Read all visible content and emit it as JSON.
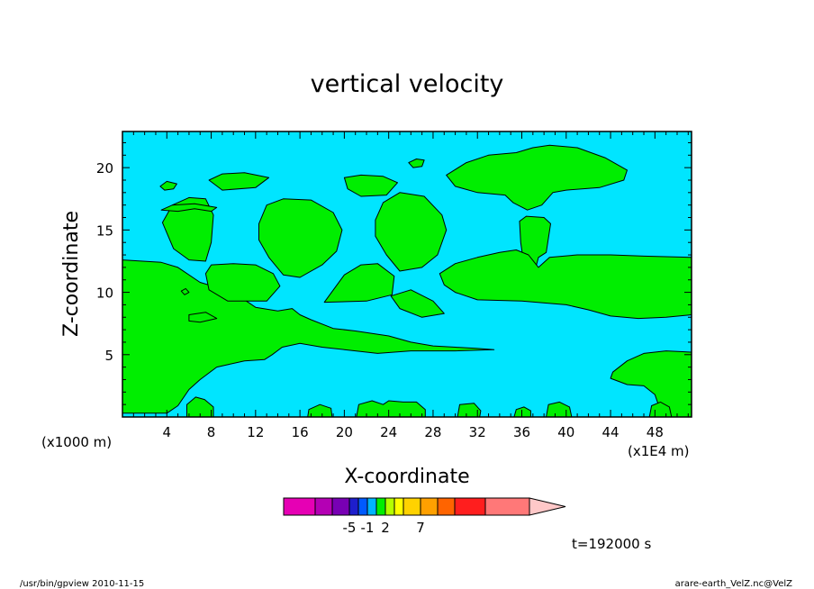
{
  "chart_data": {
    "type": "heatmap",
    "title": "vertical velocity",
    "xlabel": "X-coordinate",
    "ylabel": "Z-coordinate",
    "x_unit": "(x1000 m)",
    "x_unit_right": "(x1E4 m)",
    "x_ticks": [
      4,
      8,
      12,
      16,
      20,
      24,
      28,
      32,
      36,
      40,
      44,
      48
    ],
    "y_ticks": [
      5,
      10,
      15,
      20
    ],
    "xlim": [
      0,
      51.3
    ],
    "ylim": [
      0,
      22.9
    ],
    "fields": {
      "background_color": "#00e5ff",
      "region_color": "#00ee00",
      "regions": [
        {
          "name": "left-lower-mass",
          "points": [
            [
              0,
              12.6
            ],
            [
              3.5,
              12.4
            ],
            [
              5,
              12
            ],
            [
              7,
              10.8
            ],
            [
              10,
              10
            ],
            [
              12,
              8.8
            ],
            [
              14,
              8.5
            ],
            [
              15.3,
              8.7
            ],
            [
              16,
              8.2
            ],
            [
              17,
              7.8
            ],
            [
              19,
              7.1
            ],
            [
              21,
              6.9
            ],
            [
              24,
              6.5
            ],
            [
              26,
              6.0
            ],
            [
              28,
              5.7
            ],
            [
              30,
              5.6
            ],
            [
              32,
              5.5
            ],
            [
              33.5,
              5.4
            ],
            [
              30,
              5.3
            ],
            [
              26,
              5.3
            ],
            [
              23,
              5.1
            ],
            [
              20,
              5.4
            ],
            [
              18,
              5.6
            ],
            [
              16,
              5.9
            ],
            [
              14.4,
              5.6
            ],
            [
              13.5,
              5.0
            ],
            [
              12.8,
              4.6
            ],
            [
              11,
              4.5
            ],
            [
              9.5,
              4.2
            ],
            [
              8.5,
              4.0
            ],
            [
              7,
              3.0
            ],
            [
              6,
              2.2
            ],
            [
              5,
              0.9
            ],
            [
              4,
              0.3
            ],
            [
              0,
              0.3
            ]
          ]
        },
        {
          "name": "upper-left-blob",
          "points": [
            [
              3.6,
              15.6
            ],
            [
              4.5,
              17
            ],
            [
              6,
              17.6
            ],
            [
              7.5,
              17.5
            ],
            [
              8.2,
              16.2
            ],
            [
              8,
              14
            ],
            [
              7.5,
              12.5
            ],
            [
              6,
              12.6
            ],
            [
              4.6,
              13.5
            ]
          ]
        },
        {
          "name": "upper-left-strip",
          "points": [
            [
              3.5,
              16.6
            ],
            [
              5,
              16.5
            ],
            [
              6.5,
              16.7
            ],
            [
              8,
              16.5
            ],
            [
              8.5,
              16.8
            ],
            [
              6.5,
              17.1
            ],
            [
              4.5,
              17.0
            ]
          ]
        },
        {
          "name": "mid-left-box",
          "points": [
            [
              7.5,
              11.5
            ],
            [
              8,
              12.2
            ],
            [
              10,
              12.3
            ],
            [
              12,
              12.2
            ],
            [
              13.6,
              11.5
            ],
            [
              14.2,
              10.5
            ],
            [
              13,
              9.3
            ],
            [
              9.5,
              9.3
            ],
            [
              7.8,
              10.2
            ]
          ]
        },
        {
          "name": "left-small-blob",
          "points": [
            [
              6,
              8.2
            ],
            [
              7.5,
              8.4
            ],
            [
              8.5,
              7.9
            ],
            [
              7,
              7.6
            ],
            [
              6,
              7.7
            ]
          ]
        },
        {
          "name": "center-left-tall-blob",
          "points": [
            [
              12.3,
              15.5
            ],
            [
              13,
              17
            ],
            [
              14.5,
              17.5
            ],
            [
              17,
              17.4
            ],
            [
              19,
              16.4
            ],
            [
              19.8,
              15
            ],
            [
              19.3,
              13.3
            ],
            [
              18,
              12.2
            ],
            [
              16,
              11.2
            ],
            [
              14.5,
              11.4
            ],
            [
              13.2,
              12.8
            ],
            [
              12.3,
              14.2
            ]
          ]
        },
        {
          "name": "top-strip-left",
          "points": [
            [
              7.8,
              19
            ],
            [
              9,
              19.5
            ],
            [
              11,
              19.6
            ],
            [
              13.2,
              19.2
            ],
            [
              12,
              18.4
            ],
            [
              9,
              18.2
            ]
          ]
        },
        {
          "name": "top-strip-center",
          "points": [
            [
              20,
              19.2
            ],
            [
              21.5,
              19.4
            ],
            [
              23.5,
              19.3
            ],
            [
              24.8,
              18.8
            ],
            [
              23.8,
              17.8
            ],
            [
              21.5,
              17.7
            ],
            [
              20.3,
              18.3
            ]
          ]
        },
        {
          "name": "center-right-blob",
          "points": [
            [
              22.8,
              15.8
            ],
            [
              23.5,
              17.2
            ],
            [
              25,
              18
            ],
            [
              27.2,
              17.7
            ],
            [
              28.8,
              16.2
            ],
            [
              29.2,
              15
            ],
            [
              28.4,
              13
            ],
            [
              27,
              12
            ],
            [
              25,
              11.7
            ],
            [
              23.8,
              13
            ],
            [
              22.8,
              14.5
            ]
          ]
        },
        {
          "name": "center-triangle",
          "points": [
            [
              18.2,
              9.2
            ],
            [
              20,
              11.4
            ],
            [
              21.5,
              12.2
            ],
            [
              23,
              12.3
            ],
            [
              24.5,
              11.3
            ],
            [
              24.3,
              9.8
            ],
            [
              22,
              9.3
            ]
          ]
        },
        {
          "name": "center-right-lump",
          "points": [
            [
              24.2,
              9.7
            ],
            [
              26,
              10.2
            ],
            [
              28,
              9.3
            ],
            [
              29,
              8.3
            ],
            [
              27,
              8.0
            ],
            [
              25,
              8.7
            ]
          ]
        },
        {
          "name": "top-right-cloud",
          "points": [
            [
              29.2,
              19.4
            ],
            [
              31,
              20.4
            ],
            [
              33,
              21
            ],
            [
              35.5,
              21.2
            ],
            [
              37,
              21.6
            ],
            [
              38.5,
              21.8
            ],
            [
              41,
              21.6
            ],
            [
              43.5,
              20.8
            ],
            [
              45.5,
              19.8
            ],
            [
              45.2,
              19.0
            ],
            [
              43,
              18.4
            ],
            [
              40,
              18.2
            ],
            [
              38.8,
              18
            ],
            [
              37.8,
              17
            ],
            [
              36.5,
              16.6
            ],
            [
              35.2,
              17.2
            ],
            [
              34.5,
              17.8
            ],
            [
              32,
              18
            ],
            [
              30,
              18.5
            ]
          ]
        },
        {
          "name": "right-tall-lobe",
          "points": [
            [
              35.8,
              15.7
            ],
            [
              36.4,
              16.1
            ],
            [
              38,
              16
            ],
            [
              38.6,
              15.5
            ],
            [
              38.2,
              13.2
            ],
            [
              37.5,
              12.8
            ],
            [
              37.2,
              11.8
            ],
            [
              37.4,
              11.0
            ],
            [
              36.7,
              11.5
            ],
            [
              36.1,
              12.8
            ],
            [
              35.9,
              14
            ]
          ]
        },
        {
          "name": "right-large-mass",
          "points": [
            [
              28.6,
              11.5
            ],
            [
              30,
              12.3
            ],
            [
              32,
              12.8
            ],
            [
              34,
              13.2
            ],
            [
              35.5,
              13.4
            ],
            [
              36.6,
              13
            ],
            [
              37.5,
              12
            ],
            [
              38.5,
              12.8
            ],
            [
              41,
              13
            ],
            [
              44,
              13
            ],
            [
              47,
              12.9
            ],
            [
              51.3,
              12.8
            ],
            [
              51.3,
              8.2
            ],
            [
              49,
              8.0
            ],
            [
              46.5,
              7.9
            ],
            [
              44,
              8.1
            ],
            [
              42,
              8.6
            ],
            [
              40,
              9.0
            ],
            [
              36,
              9.3
            ],
            [
              32,
              9.4
            ],
            [
              30,
              10.0
            ],
            [
              29,
              10.6
            ]
          ]
        },
        {
          "name": "right-lower-mass",
          "points": [
            [
              51.3,
              5.2
            ],
            [
              49,
              5.3
            ],
            [
              47,
              5.1
            ],
            [
              45.5,
              4.5
            ],
            [
              44.2,
              3.6
            ],
            [
              44,
              3.1
            ],
            [
              45.5,
              2.6
            ],
            [
              47,
              2.5
            ],
            [
              48,
              1.8
            ],
            [
              48.5,
              0.5
            ],
            [
              48.5,
              0
            ],
            [
              51.3,
              0
            ]
          ]
        },
        {
          "name": "small-blob-top",
          "points": [
            [
              25.8,
              20.4
            ],
            [
              26.5,
              20.7
            ],
            [
              27.2,
              20.6
            ],
            [
              27,
              20.1
            ],
            [
              26.2,
              20
            ]
          ]
        },
        {
          "name": "small-blob-topleft",
          "points": [
            [
              3.4,
              18.5
            ],
            [
              4,
              18.9
            ],
            [
              4.9,
              18.7
            ],
            [
              4.6,
              18.3
            ],
            [
              3.8,
              18.2
            ]
          ]
        },
        {
          "name": "small-left-dot",
          "points": [
            [
              5.3,
              10.1
            ],
            [
              5.7,
              10.3
            ],
            [
              6,
              10.0
            ],
            [
              5.6,
              9.8
            ]
          ]
        },
        {
          "name": "bottom-blob-1",
          "points": [
            [
              5.8,
              0
            ],
            [
              5.8,
              1.0
            ],
            [
              6.6,
              1.6
            ],
            [
              7.4,
              1.4
            ],
            [
              8.2,
              0.8
            ],
            [
              8.2,
              0
            ]
          ]
        },
        {
          "name": "bottom-blob-2",
          "points": [
            [
              16.7,
              0
            ],
            [
              16.8,
              0.6
            ],
            [
              17.8,
              1.0
            ],
            [
              18.8,
              0.7
            ],
            [
              18.9,
              0
            ]
          ]
        },
        {
          "name": "bottom-blob-3",
          "points": [
            [
              21.1,
              0
            ],
            [
              21.3,
              1.0
            ],
            [
              22.5,
              1.3
            ],
            [
              23.5,
              1.0
            ],
            [
              24,
              1.3
            ],
            [
              25.3,
              1.2
            ],
            [
              26.5,
              1.2
            ],
            [
              27.3,
              0.6
            ],
            [
              27.3,
              0
            ]
          ]
        },
        {
          "name": "bottom-blob-4",
          "points": [
            [
              30.2,
              0
            ],
            [
              30.4,
              1.0
            ],
            [
              31.7,
              1.1
            ],
            [
              32.3,
              0.5
            ],
            [
              32.2,
              0
            ]
          ]
        },
        {
          "name": "bottom-blob-5",
          "points": [
            [
              35.3,
              0
            ],
            [
              35.5,
              0.6
            ],
            [
              36.2,
              0.8
            ],
            [
              36.8,
              0.5
            ],
            [
              36.8,
              0
            ]
          ]
        },
        {
          "name": "bottom-blob-6",
          "points": [
            [
              38.2,
              0
            ],
            [
              38.4,
              1.0
            ],
            [
              39.4,
              1.2
            ],
            [
              40.3,
              0.8
            ],
            [
              40.5,
              0
            ]
          ]
        },
        {
          "name": "bottom-blob-7",
          "points": [
            [
              47.5,
              0
            ],
            [
              47.7,
              0.9
            ],
            [
              48.5,
              1.2
            ],
            [
              49.3,
              0.8
            ],
            [
              49.5,
              0
            ]
          ]
        }
      ]
    },
    "colorbar": {
      "colors": [
        "#e600b4",
        "#b400b4",
        "#7800b4",
        "#1e1ecc",
        "#005aff",
        "#00b4ff",
        "#00ee00",
        "#b4ff00",
        "#ffff00",
        "#ffd200",
        "#ffa000",
        "#ff6400",
        "#ff1e1e",
        "#ff7878"
      ],
      "arrow_color": "#ffc8c8",
      "labels": [
        "-5",
        "-1",
        "2",
        "7"
      ],
      "label_bins": [
        3,
        5,
        7,
        10
      ]
    },
    "time_label": "t=192000 s"
  },
  "footer": {
    "left": "/usr/bin/gpview   2010-11-15",
    "right": "arare-earth_VelZ.nc@VelZ"
  }
}
